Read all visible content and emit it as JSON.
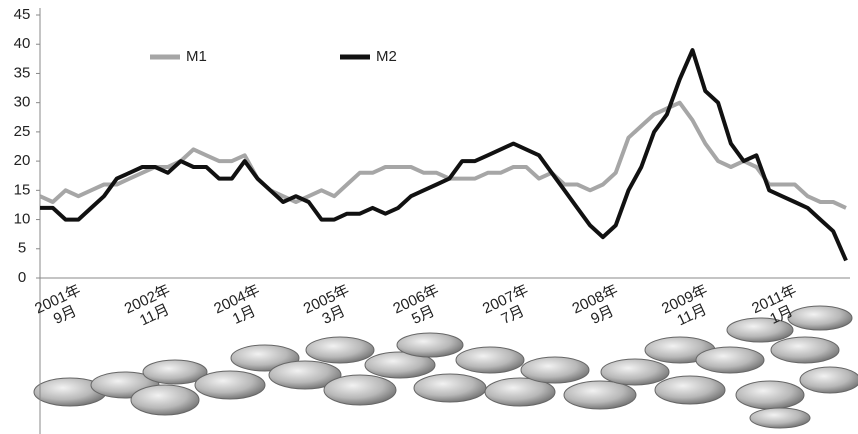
{
  "chart_data": {
    "type": "line",
    "categories": [
      "2001年\n9月",
      null,
      null,
      null,
      null,
      null,
      null,
      "2002年\n11月",
      null,
      null,
      null,
      null,
      null,
      null,
      "2004年\n1月",
      null,
      null,
      null,
      null,
      null,
      null,
      "2005年\n3月",
      null,
      null,
      null,
      null,
      null,
      null,
      "2006年\n5月",
      null,
      null,
      null,
      null,
      null,
      null,
      "2007年\n7月",
      null,
      null,
      null,
      null,
      null,
      null,
      "2008年\n9月",
      null,
      null,
      null,
      null,
      null,
      null,
      "2009年\n11月",
      null,
      null,
      null,
      null,
      null,
      null,
      "2011年\n1月",
      null,
      null,
      null,
      null,
      null,
      null,
      null
    ],
    "series": [
      {
        "name": "M1",
        "color": "#a6a6a6",
        "values": [
          14,
          13,
          15,
          14,
          15,
          16,
          16,
          17,
          18,
          19,
          19,
          20,
          22,
          21,
          20,
          20,
          21,
          17,
          15,
          14,
          13,
          14,
          15,
          14,
          16,
          18,
          18,
          19,
          19,
          19,
          18,
          18,
          17,
          17,
          17,
          18,
          18,
          19,
          19,
          17,
          18,
          16,
          16,
          15,
          16,
          18,
          24,
          26,
          28,
          29,
          30,
          27,
          23,
          20,
          19,
          20,
          19,
          16,
          16,
          16,
          14,
          13,
          13,
          12
        ]
      },
      {
        "name": "M2",
        "color": "#111111",
        "values": [
          12,
          12,
          10,
          10,
          12,
          14,
          17,
          18,
          19,
          19,
          18,
          20,
          19,
          19,
          17,
          17,
          20,
          17,
          15,
          13,
          14,
          13,
          10,
          10,
          11,
          11,
          12,
          11,
          12,
          14,
          15,
          16,
          17,
          20,
          20,
          21,
          22,
          23,
          22,
          21,
          18,
          15,
          12,
          9,
          7,
          9,
          15,
          19,
          25,
          28,
          34,
          39,
          32,
          30,
          23,
          20,
          21,
          15,
          14,
          13,
          12,
          10,
          8,
          3
        ]
      }
    ],
    "ylim": [
      0,
      45
    ],
    "yticks": [
      0,
      5,
      10,
      15,
      20,
      25,
      30,
      35,
      40,
      45
    ],
    "legend": "top-left"
  }
}
